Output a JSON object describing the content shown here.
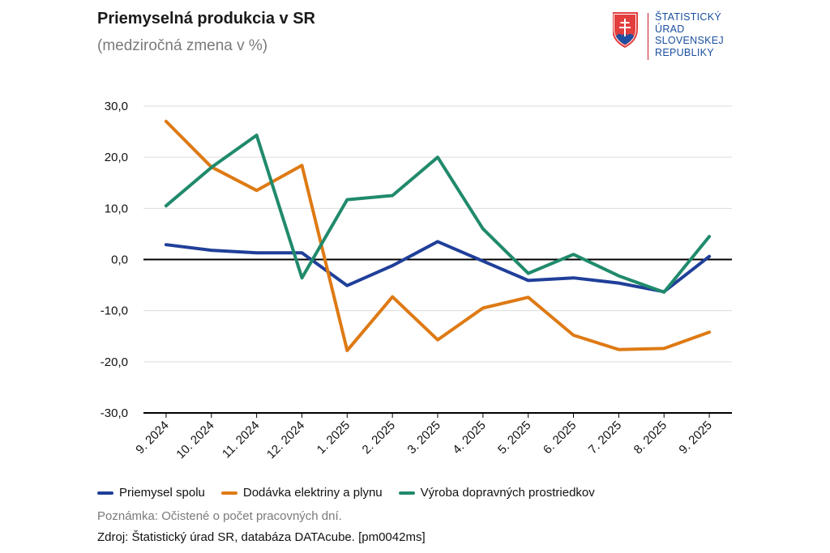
{
  "title": "Priemyselná produkcia v SR",
  "subtitle": "(medziročná zmena v %)",
  "logo": {
    "lines": [
      "ŠTATISTICKÝ",
      "ÚRAD",
      "SLOVENSKEJ",
      "REPUBLIKY"
    ],
    "color": "#1a4fa0",
    "accent": "#c9202d"
  },
  "chart_data": {
    "type": "line",
    "categories": [
      "9. 2024",
      "10. 2024",
      "11. 2024",
      "12. 2024",
      "1. 2025",
      "2. 2025",
      "3. 2025",
      "4. 2025",
      "5. 2025",
      "6. 2025",
      "7. 2025",
      "8. 2025",
      "9. 2025"
    ],
    "yticks": [
      "30,0",
      "20,0",
      "10,0",
      "0,0",
      "-10,0",
      "-20,0",
      "-30,0"
    ],
    "ylim": [
      -30,
      30
    ],
    "grid": true,
    "legend": "bottom",
    "series": [
      {
        "name": "Priemysel spolu",
        "color": "#1f3f99",
        "values": [
          2.9,
          1.8,
          1.3,
          1.3,
          -5.1,
          -1.2,
          3.5,
          -0.3,
          -4.1,
          -3.6,
          -4.6,
          -6.3,
          0.6
        ]
      },
      {
        "name": "Dodávka elektriny a plynu",
        "color": "#de7a14",
        "values": [
          27.0,
          18.1,
          13.5,
          18.4,
          -17.8,
          -7.3,
          -15.7,
          -9.5,
          -7.4,
          -14.8,
          -17.6,
          -17.4,
          -14.2
        ]
      },
      {
        "name": "Výroba dopravných prostriedkov",
        "color": "#208a6c",
        "values": [
          10.5,
          18.0,
          24.3,
          -3.6,
          11.7,
          12.5,
          20.0,
          6.0,
          -2.7,
          1.0,
          -3.2,
          -6.4,
          4.5
        ]
      }
    ]
  },
  "note": "Poznámka: Očistené o počet pracovných dní.",
  "source": "Zdroj: Štatistický úrad SR, databáza DATAcube. [pm0042ms]"
}
